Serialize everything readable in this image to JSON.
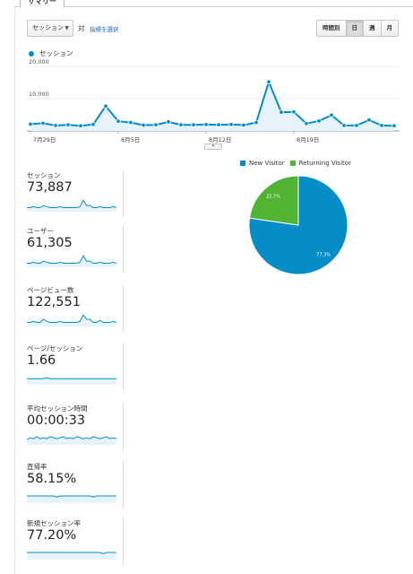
{
  "tab": {
    "label": "サマリー"
  },
  "controls": {
    "metric_select": "セッション",
    "vs_label": "対",
    "choose_metric": "指標を選択",
    "granularity": [
      "時間別",
      "日",
      "週",
      "月"
    ],
    "granularity_active": "日"
  },
  "colors": {
    "accent": "#058dc7",
    "secondary": "#50b432",
    "spark_fill": "#e6f3fa"
  },
  "chart_data": [
    {
      "type": "area",
      "series": [
        {
          "name": "セッション",
          "values": [
            2100,
            2400,
            1700,
            1900,
            1600,
            2000,
            7700,
            3000,
            2600,
            1800,
            1900,
            2800,
            1900,
            1900,
            2000,
            1900,
            2000,
            1800,
            2600,
            15200,
            5800,
            5900,
            2300,
            3100,
            4900,
            1700,
            1700,
            3400,
            1700,
            1600
          ]
        }
      ],
      "x_tick_labels": [
        "7月29日",
        "8月5日",
        "8月12日",
        "8月19日"
      ],
      "y_tick_labels": [
        "20,000",
        "10,000"
      ],
      "ylim": [
        0,
        20000
      ],
      "grid": true
    },
    {
      "type": "pie",
      "labels": [
        "New Visitor",
        "Returning Visitor"
      ],
      "values": [
        77.3,
        22.7
      ],
      "value_labels": [
        "77.3%",
        "22.7%"
      ],
      "colors": [
        "#058dc7",
        "#50b432"
      ],
      "legend": "top"
    }
  ],
  "metrics": [
    {
      "label": "セッション",
      "value": "73,887",
      "spark": [
        3,
        3,
        4,
        3,
        3,
        5,
        4,
        3,
        3,
        3,
        4,
        3,
        3,
        3,
        3,
        3,
        4,
        10,
        5,
        5,
        3,
        3,
        4,
        3,
        3,
        3,
        4,
        3
      ]
    },
    {
      "label": "ユーザー",
      "value": "61,305",
      "spark": [
        3,
        3,
        4,
        3,
        3,
        5,
        4,
        3,
        3,
        3,
        4,
        3,
        3,
        3,
        3,
        3,
        4,
        10,
        5,
        5,
        3,
        3,
        4,
        3,
        3,
        3,
        4,
        3
      ]
    },
    {
      "label": "ページビュー数",
      "value": "122,551",
      "spark": [
        3,
        3,
        4,
        3,
        3,
        6,
        4,
        3,
        3,
        3,
        4,
        3,
        3,
        3,
        3,
        3,
        4,
        10,
        6,
        6,
        3,
        3,
        5,
        3,
        3,
        3,
        4,
        3
      ]
    },
    {
      "label": "ページ/セッション",
      "value": "1.66",
      "spark": [
        5,
        5,
        5,
        5,
        5,
        5,
        6,
        5,
        5,
        5,
        5,
        5,
        5,
        5,
        5,
        5,
        5,
        5,
        5,
        5,
        5,
        5,
        5,
        5,
        5,
        5,
        5,
        5
      ]
    },
    {
      "label": "平均セッション時間",
      "value": "00:00:33",
      "spark": [
        4,
        6,
        5,
        7,
        5,
        6,
        5,
        7,
        6,
        5,
        6,
        7,
        5,
        6,
        5,
        7,
        6,
        5,
        6,
        5,
        7,
        6,
        5,
        6,
        7,
        5,
        6,
        5
      ]
    },
    {
      "label": "直帰率",
      "value": "58.15%",
      "spark": [
        6,
        6,
        6,
        6,
        6,
        6,
        6,
        6,
        6,
        5,
        6,
        6,
        6,
        6,
        6,
        6,
        6,
        6,
        6,
        6,
        5,
        6,
        6,
        6,
        6,
        6,
        6,
        6
      ]
    },
    {
      "label": "新規セッション率",
      "value": "77.20%",
      "spark": [
        6,
        6,
        6,
        6,
        6,
        6,
        6,
        6,
        6,
        6,
        6,
        6,
        6,
        6,
        6,
        6,
        6,
        6,
        6,
        6,
        6,
        6,
        6,
        5,
        6,
        6,
        6,
        6
      ]
    }
  ]
}
